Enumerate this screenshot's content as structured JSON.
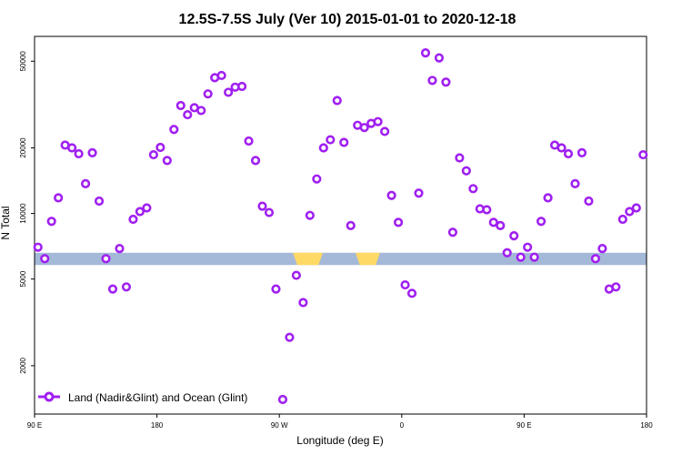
{
  "chart_data": {
    "type": "scatter",
    "title": "12.5S-7.5S July (Ver 10)   2015-01-01 to 2020-12-18",
    "xlabel": "Longitude (deg E)",
    "ylabel": "N Total",
    "yscale": "log",
    "xlim": [
      90,
      540
    ],
    "ylim": [
      1200,
      65000
    ],
    "x_ticks": [
      {
        "value": 90,
        "label": "90 E"
      },
      {
        "value": 180,
        "label": "180"
      },
      {
        "value": 270,
        "label": "90 W"
      },
      {
        "value": 360,
        "label": "0"
      },
      {
        "value": 450,
        "label": "90 E"
      },
      {
        "value": 540,
        "label": "180"
      }
    ],
    "y_ticks": [
      {
        "value": 2000,
        "label": "2000"
      },
      {
        "value": 5000,
        "label": "5000"
      },
      {
        "value": 10000,
        "label": "10000"
      },
      {
        "value": 20000,
        "label": "20000"
      },
      {
        "value": 50000,
        "label": "50000"
      }
    ],
    "legend": {
      "position": "bottom-left",
      "entries": [
        {
          "name": "Land (Nadir&Glint) and Ocean (Glint)",
          "color": "#a020f0"
        }
      ]
    },
    "series": [
      {
        "name": "Land (Nadir&Glint) and Ocean (Glint)",
        "color": "#a020f0",
        "x": [
          92.5,
          97.5,
          102.5,
          107.5,
          112.5,
          117.5,
          122.5,
          127.5,
          132.5,
          137.5,
          142.5,
          147.5,
          152.5,
          157.5,
          162.5,
          167.5,
          172.5,
          177.5,
          182.5,
          187.5,
          192.5,
          197.5,
          202.5,
          207.5,
          212.5,
          217.5,
          222.5,
          227.5,
          232.5,
          237.5,
          242.5,
          247.5,
          252.5,
          257.5,
          262.5,
          267.5,
          272.5,
          277.5,
          282.5,
          287.5,
          292.5,
          297.5,
          302.5,
          307.5,
          312.5,
          317.5,
          322.5,
          327.5,
          332.5,
          337.5,
          342.5,
          347.5,
          352.5,
          357.5,
          362.5,
          367.5,
          372.5,
          377.5,
          382.5,
          387.5,
          392.5,
          397.5,
          402.5,
          407.5,
          412.5,
          417.5,
          422.5,
          427.5,
          432.5,
          437.5,
          442.5,
          447.5,
          452.5,
          457.5,
          462.5,
          467.5,
          472.5,
          477.5,
          482.5,
          487.5,
          492.5,
          497.5,
          502.5,
          507.5,
          512.5,
          517.5,
          522.5,
          527.5,
          532.5,
          537.5
        ],
        "y": [
          7000,
          6200,
          9200,
          11800,
          20600,
          20000,
          18800,
          13700,
          19000,
          11400,
          6200,
          4500,
          6900,
          4600,
          9400,
          10200,
          10600,
          18600,
          20100,
          17500,
          24300,
          31300,
          28400,
          30600,
          29700,
          35400,
          42000,
          43000,
          36000,
          38000,
          38300,
          21500,
          17500,
          10800,
          10100,
          4500,
          1400,
          2700,
          5200,
          3900,
          9800,
          14400,
          20000,
          21800,
          33000,
          21200,
          8800,
          25400,
          24800,
          25900,
          26400,
          23800,
          12100,
          9100,
          4700,
          4300,
          12400,
          54600,
          40800,
          51800,
          40100,
          8200,
          18000,
          15700,
          13000,
          10500,
          10400,
          9100,
          8800,
          6600,
          7900,
          6300,
          7000,
          6300,
          9200,
          11800,
          20600,
          20000,
          18800,
          13700,
          19000,
          11400,
          6200,
          6900,
          4500,
          4600,
          9400,
          10200,
          10600,
          18600
        ]
      }
    ],
    "surface_band": {
      "y_range": [
        5800,
        6600
      ],
      "base_color": "#a4b8d8",
      "land_color": "#ffd966",
      "land_spans": [
        [
          280,
          302
        ],
        [
          326,
          344
        ]
      ]
    }
  }
}
